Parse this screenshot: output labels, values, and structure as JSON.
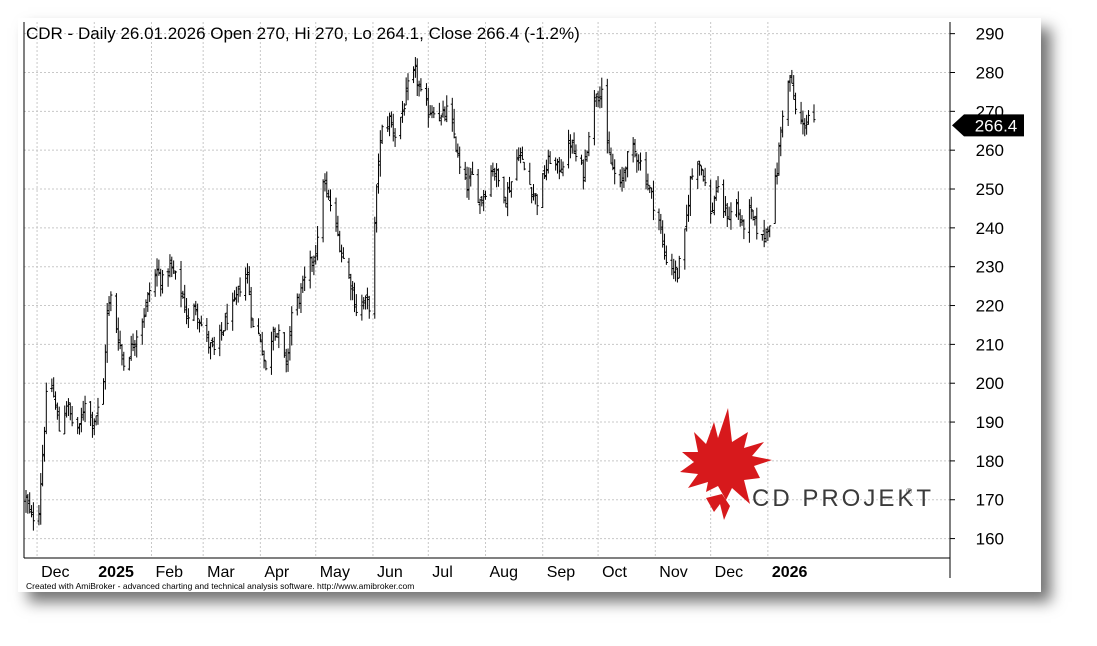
{
  "chart_data": {
    "type": "ohlc",
    "title": "CDR - Daily 26.01.2026 Open 270, Hi 270, Lo 264.1, Close 266.4 (-1.2%)",
    "ylim": [
      155,
      293
    ],
    "y_ticks": [
      160,
      170,
      180,
      190,
      200,
      210,
      220,
      230,
      240,
      250,
      260,
      270,
      280,
      290
    ],
    "x_range": [
      "2024-11-25",
      "2026-01-26"
    ],
    "x_ticks": [
      {
        "label": "Dec",
        "date": "2024-12-01",
        "year": false
      },
      {
        "label": "2025",
        "date": "2025-01-01",
        "year": true
      },
      {
        "label": "Feb",
        "date": "2025-02-01",
        "year": false
      },
      {
        "label": "Mar",
        "date": "2025-03-01",
        "year": false
      },
      {
        "label": "Apr",
        "date": "2025-04-01",
        "year": false
      },
      {
        "label": "May",
        "date": "2025-05-01",
        "year": false
      },
      {
        "label": "Jun",
        "date": "2025-06-01",
        "year": false
      },
      {
        "label": "Jul",
        "date": "2025-07-01",
        "year": false
      },
      {
        "label": "Aug",
        "date": "2025-08-01",
        "year": false
      },
      {
        "label": "Sep",
        "date": "2025-09-01",
        "year": false
      },
      {
        "label": "Oct",
        "date": "2025-10-01",
        "year": false
      },
      {
        "label": "Nov",
        "date": "2025-11-01",
        "year": false
      },
      {
        "label": "Dec",
        "date": "2025-12-01",
        "year": false
      },
      {
        "label": "2026",
        "date": "2026-01-01",
        "year": true
      }
    ],
    "close_path": [
      [
        "2024-11-25",
        170
      ],
      [
        "2024-11-28",
        165
      ],
      [
        "2024-12-02",
        168
      ],
      [
        "2024-12-04",
        182
      ],
      [
        "2024-12-06",
        196
      ],
      [
        "2024-12-09",
        199
      ],
      [
        "2024-12-11",
        194
      ],
      [
        "2024-12-13",
        188
      ],
      [
        "2024-12-17",
        195
      ],
      [
        "2024-12-20",
        190
      ],
      [
        "2024-12-24",
        188
      ],
      [
        "2024-12-27",
        196
      ],
      [
        "2024-12-31",
        190
      ],
      [
        "2025-01-03",
        193
      ],
      [
        "2025-01-06",
        200
      ],
      [
        "2025-01-08",
        218
      ],
      [
        "2025-01-10",
        222
      ],
      [
        "2025-01-14",
        212
      ],
      [
        "2025-01-17",
        205
      ],
      [
        "2025-01-21",
        209
      ],
      [
        "2025-01-24",
        213
      ],
      [
        "2025-01-28",
        218
      ],
      [
        "2025-01-31",
        224
      ],
      [
        "2025-02-04",
        229
      ],
      [
        "2025-02-07",
        226
      ],
      [
        "2025-02-11",
        230
      ],
      [
        "2025-02-14",
        227
      ],
      [
        "2025-02-18",
        222
      ],
      [
        "2025-02-21",
        216
      ],
      [
        "2025-02-25",
        220
      ],
      [
        "2025-02-28",
        215
      ],
      [
        "2025-03-04",
        210
      ],
      [
        "2025-03-07",
        208
      ],
      [
        "2025-03-11",
        213
      ],
      [
        "2025-03-14",
        217
      ],
      [
        "2025-03-18",
        220
      ],
      [
        "2025-03-21",
        225
      ],
      [
        "2025-03-25",
        228
      ],
      [
        "2025-03-28",
        214
      ],
      [
        "2025-04-01",
        212
      ],
      [
        "2025-04-04",
        203
      ],
      [
        "2025-04-08",
        215
      ],
      [
        "2025-04-11",
        212
      ],
      [
        "2025-04-15",
        204
      ],
      [
        "2025-04-18",
        218
      ],
      [
        "2025-04-22",
        222
      ],
      [
        "2025-04-25",
        226
      ],
      [
        "2025-04-29",
        232
      ],
      [
        "2025-05-02",
        236
      ],
      [
        "2025-05-05",
        253
      ],
      [
        "2025-05-07",
        248
      ],
      [
        "2025-05-09",
        246
      ],
      [
        "2025-05-13",
        238
      ],
      [
        "2025-05-16",
        232
      ],
      [
        "2025-05-20",
        226
      ],
      [
        "2025-05-23",
        219
      ],
      [
        "2025-05-27",
        221
      ],
      [
        "2025-05-30",
        220
      ],
      [
        "2025-06-02",
        240
      ],
      [
        "2025-06-04",
        258
      ],
      [
        "2025-06-06",
        265
      ],
      [
        "2025-06-10",
        268
      ],
      [
        "2025-06-13",
        264
      ],
      [
        "2025-06-17",
        270
      ],
      [
        "2025-06-20",
        276
      ],
      [
        "2025-06-24",
        280
      ],
      [
        "2025-06-27",
        274
      ],
      [
        "2025-07-01",
        270
      ],
      [
        "2025-07-04",
        271
      ],
      [
        "2025-07-08",
        268
      ],
      [
        "2025-07-11",
        270
      ],
      [
        "2025-07-15",
        264
      ],
      [
        "2025-07-18",
        255
      ],
      [
        "2025-07-22",
        251
      ],
      [
        "2025-07-25",
        253
      ],
      [
        "2025-07-29",
        247
      ],
      [
        "2025-08-01",
        250
      ],
      [
        "2025-08-05",
        256
      ],
      [
        "2025-08-08",
        252
      ],
      [
        "2025-08-12",
        248
      ],
      [
        "2025-08-15",
        252
      ],
      [
        "2025-08-19",
        260
      ],
      [
        "2025-08-22",
        255
      ],
      [
        "2025-08-26",
        250
      ],
      [
        "2025-08-29",
        247
      ],
      [
        "2025-09-02",
        254
      ],
      [
        "2025-09-05",
        258
      ],
      [
        "2025-09-09",
        255
      ],
      [
        "2025-09-12",
        257
      ],
      [
        "2025-09-16",
        262
      ],
      [
        "2025-09-19",
        258
      ],
      [
        "2025-09-23",
        254
      ],
      [
        "2025-09-26",
        265
      ],
      [
        "2025-09-30",
        275
      ],
      [
        "2025-10-03",
        276
      ],
      [
        "2025-10-06",
        260
      ],
      [
        "2025-10-09",
        255
      ],
      [
        "2025-10-13",
        250
      ],
      [
        "2025-10-16",
        257
      ],
      [
        "2025-10-20",
        260
      ],
      [
        "2025-10-23",
        258
      ],
      [
        "2025-10-27",
        253
      ],
      [
        "2025-10-30",
        248
      ],
      [
        "2025-11-03",
        242
      ],
      [
        "2025-11-06",
        233
      ],
      [
        "2025-11-10",
        230
      ],
      [
        "2025-11-13",
        228
      ],
      [
        "2025-11-17",
        238
      ],
      [
        "2025-11-20",
        252
      ],
      [
        "2025-11-24",
        258
      ],
      [
        "2025-11-27",
        254
      ],
      [
        "2025-12-01",
        243
      ],
      [
        "2025-12-04",
        250
      ],
      [
        "2025-12-08",
        245
      ],
      [
        "2025-12-11",
        243
      ],
      [
        "2025-12-15",
        246
      ],
      [
        "2025-12-18",
        240
      ],
      [
        "2025-12-22",
        244
      ],
      [
        "2025-12-29",
        237
      ],
      [
        "2026-01-02",
        242
      ],
      [
        "2026-01-06",
        255
      ],
      [
        "2026-01-09",
        270
      ],
      [
        "2026-01-13",
        279
      ],
      [
        "2026-01-16",
        270
      ],
      [
        "2026-01-20",
        266
      ],
      [
        "2026-01-23",
        269
      ],
      [
        "2026-01-26",
        266.4
      ]
    ],
    "last_value": 266.4,
    "last_value_label": "266.4",
    "colors": {
      "bars": "#000000",
      "grid": "#c8c8c8",
      "label_bg": "#000000",
      "logo_red": "#d7191c"
    }
  },
  "footer_text": "Created with AmiBroker - advanced charting and technical analysis software. http://www.amibroker.com",
  "logo": {
    "text": "CD PROJEKT",
    "mark": "®"
  }
}
